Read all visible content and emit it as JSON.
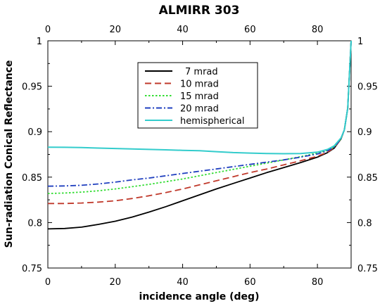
{
  "chart_data": {
    "type": "line",
    "title": "ALMIRR 303",
    "xlabel": "incidence angle (deg)",
    "ylabel": "Sun-radiation Conical Reflectance",
    "xlim": [
      0,
      90
    ],
    "ylim": [
      0.75,
      1.0
    ],
    "xticks": [
      "0",
      "20",
      "40",
      "60",
      "80"
    ],
    "yticks": [
      "0.75",
      "0.8",
      "0.85",
      "0.9",
      "0.95",
      "1"
    ],
    "grid": false,
    "legend_position": "upper-center",
    "x": [
      0,
      5,
      10,
      15,
      20,
      25,
      30,
      35,
      40,
      45,
      50,
      55,
      60,
      65,
      70,
      75,
      80,
      83,
      85,
      87,
      88,
      89,
      90
    ],
    "series": [
      {
        "name": "7 mrad",
        "color": "#000000",
        "dash": "solid",
        "values": [
          0.793,
          0.7935,
          0.795,
          0.798,
          0.8015,
          0.806,
          0.8115,
          0.8175,
          0.824,
          0.8305,
          0.837,
          0.843,
          0.849,
          0.855,
          0.8605,
          0.866,
          0.872,
          0.877,
          0.882,
          0.892,
          0.902,
          0.926,
          1.0
        ]
      },
      {
        "name": "10 mrad",
        "color": "#c0392b",
        "dash": "long",
        "values": [
          0.821,
          0.821,
          0.8215,
          0.8225,
          0.824,
          0.8265,
          0.8295,
          0.833,
          0.837,
          0.8415,
          0.846,
          0.8505,
          0.855,
          0.859,
          0.8635,
          0.868,
          0.873,
          0.8775,
          0.8825,
          0.892,
          0.902,
          0.926,
          1.0
        ]
      },
      {
        "name": "15 mrad",
        "color": "#33dd33",
        "dash": "dotted",
        "values": [
          0.832,
          0.8325,
          0.8335,
          0.835,
          0.837,
          0.8395,
          0.842,
          0.845,
          0.848,
          0.8515,
          0.855,
          0.8585,
          0.862,
          0.8655,
          0.869,
          0.8725,
          0.8765,
          0.8795,
          0.8835,
          0.8925,
          0.902,
          0.926,
          1.0
        ]
      },
      {
        "name": "20 mrad",
        "color": "#1f3fbf",
        "dash": "dashdot",
        "values": [
          0.84,
          0.8403,
          0.841,
          0.8425,
          0.8445,
          0.847,
          0.849,
          0.8515,
          0.854,
          0.8565,
          0.859,
          0.8615,
          0.864,
          0.8665,
          0.869,
          0.872,
          0.8755,
          0.879,
          0.883,
          0.8925,
          0.902,
          0.926,
          1.0
        ]
      },
      {
        "name": "hemispherical",
        "color": "#33cccc",
        "dash": "solid",
        "values": [
          0.883,
          0.8828,
          0.8825,
          0.882,
          0.8815,
          0.881,
          0.8805,
          0.88,
          0.8795,
          0.879,
          0.878,
          0.877,
          0.8765,
          0.876,
          0.8758,
          0.876,
          0.8775,
          0.8805,
          0.8845,
          0.893,
          0.902,
          0.926,
          1.0
        ]
      }
    ]
  }
}
